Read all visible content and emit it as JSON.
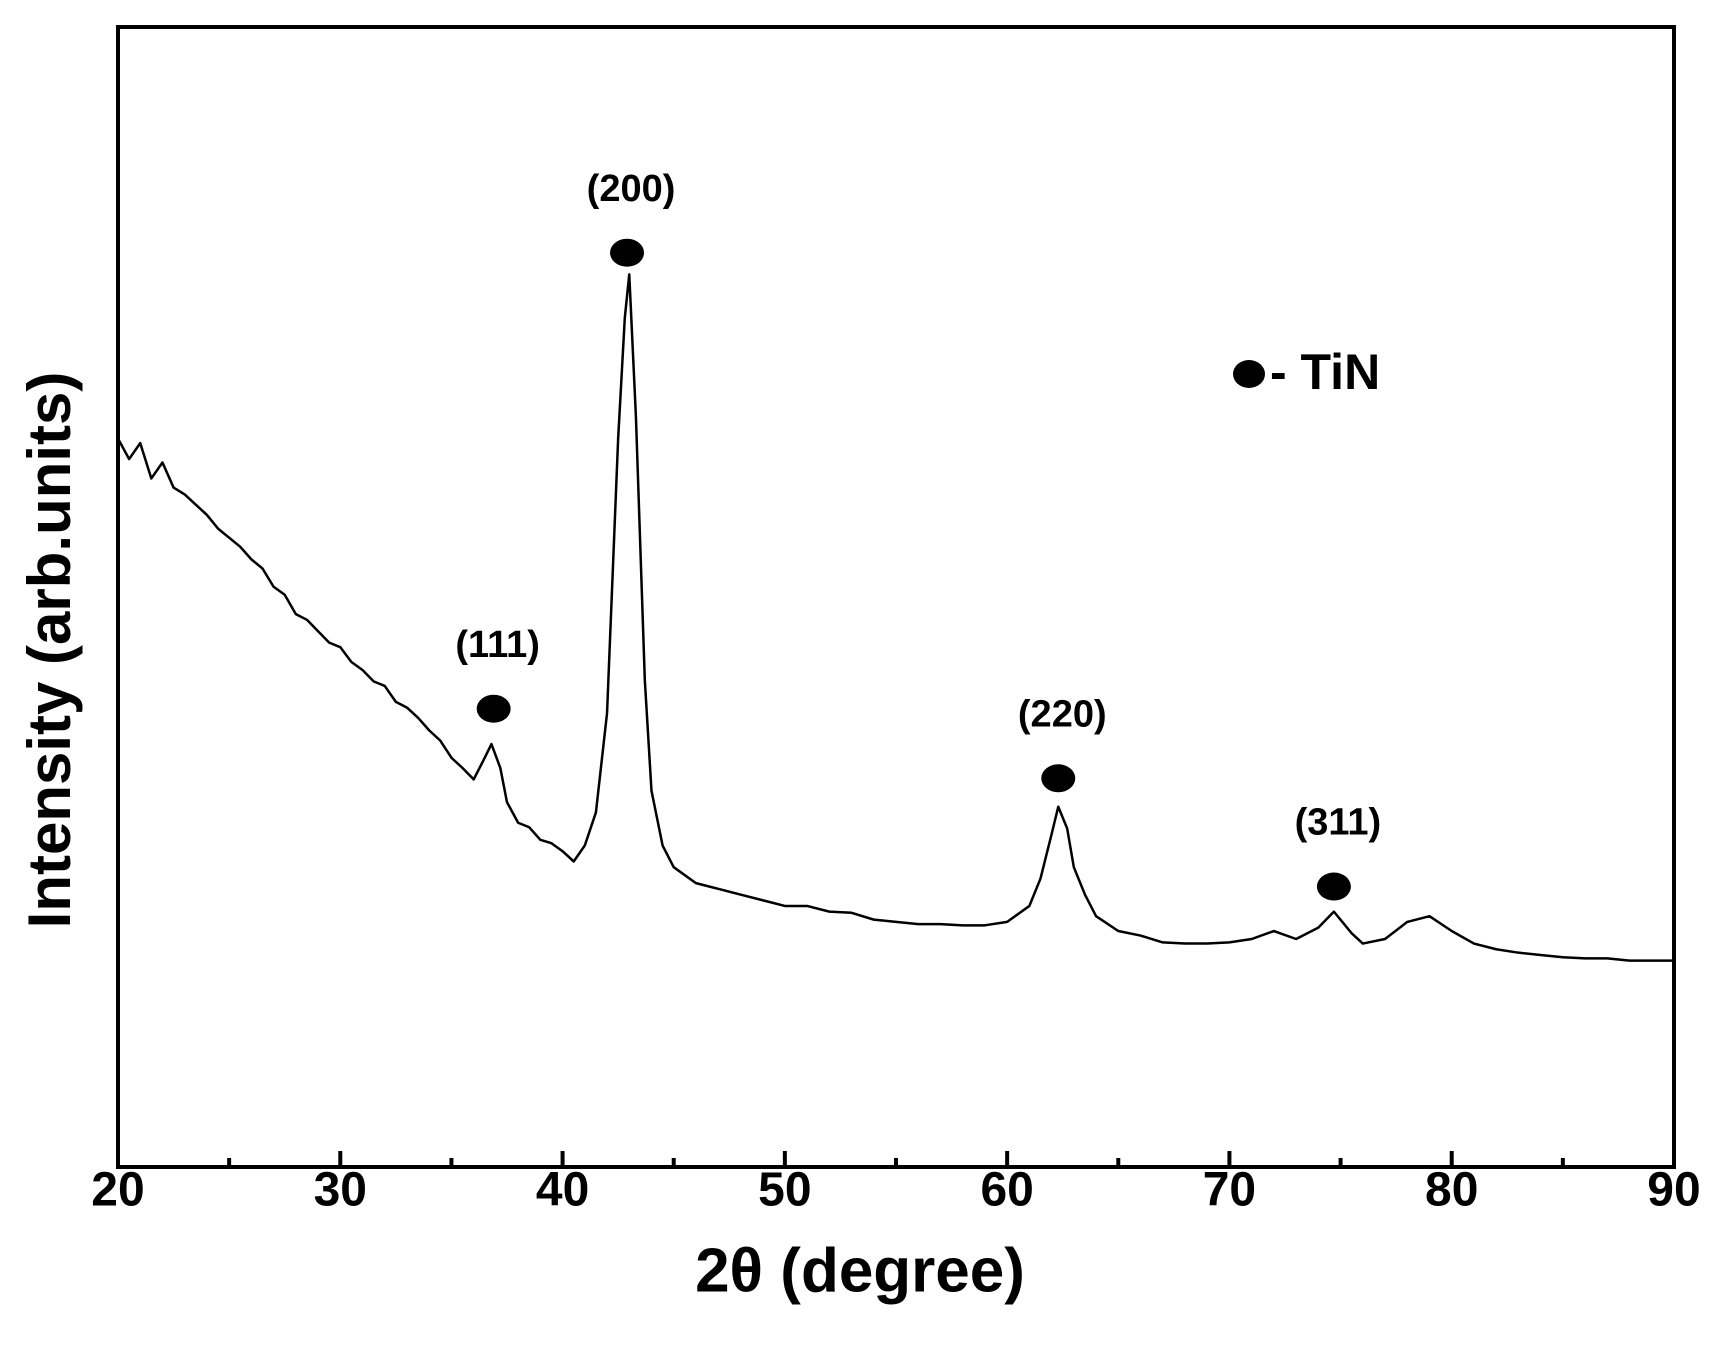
{
  "chart_data": {
    "type": "line",
    "xlabel": "2θ (degree)",
    "ylabel": "Intensity (arb.units)",
    "xlim": [
      20,
      90
    ],
    "xticks": [
      20,
      30,
      40,
      50,
      60,
      70,
      80,
      90
    ],
    "xminorticks": [
      25,
      35,
      45,
      55,
      65,
      75,
      85
    ],
    "ylim": [
      0,
      100
    ],
    "series": [
      {
        "color": "#000000",
        "x": [
          20,
          20.5,
          21,
          21.5,
          22,
          22.5,
          23,
          23.5,
          24,
          24.5,
          25,
          25.5,
          26,
          26.5,
          27,
          27.5,
          28,
          28.5,
          29,
          29.5,
          30,
          30.5,
          31,
          31.5,
          32,
          32.5,
          33,
          33.5,
          34,
          34.5,
          35,
          35.5,
          36,
          36.5,
          36.8,
          37.2,
          37.5,
          38,
          38.5,
          39,
          39.5,
          40,
          40.5,
          41,
          41.5,
          42,
          42.5,
          42.8,
          43,
          43.3,
          43.7,
          44,
          44.5,
          45,
          46,
          47,
          48,
          49,
          50,
          51,
          52,
          53,
          54,
          55,
          56,
          57,
          58,
          59,
          60,
          61,
          61.5,
          62,
          62.3,
          62.7,
          63,
          63.5,
          64,
          65,
          66,
          67,
          68,
          69,
          70,
          71,
          72,
          73,
          74,
          74.7,
          75.5,
          76,
          77,
          78,
          79,
          80,
          81,
          82,
          83,
          84,
          85,
          86,
          87,
          88,
          89,
          90
        ],
        "values": [
          63.9,
          62.1,
          63.5,
          60.4,
          61.8,
          59.6,
          59.0,
          58.1,
          57.2,
          56.0,
          55.2,
          54.4,
          53.3,
          52.5,
          50.9,
          50.2,
          48.5,
          48.0,
          47.0,
          46.0,
          45.6,
          44.3,
          43.6,
          42.6,
          42.2,
          40.8,
          40.3,
          39.4,
          38.3,
          37.4,
          35.9,
          35.0,
          34.0,
          35.9,
          37.1,
          35.0,
          32.0,
          30.2,
          29.8,
          28.7,
          28.4,
          27.7,
          26.8,
          28.2,
          31.1,
          39.8,
          63.9,
          74.5,
          78.3,
          65.8,
          42.7,
          33.0,
          28.2,
          26.3,
          24.9,
          24.4,
          23.9,
          23.4,
          22.9,
          22.9,
          22.4,
          22.3,
          21.7,
          21.5,
          21.3,
          21.3,
          21.2,
          21.2,
          21.5,
          22.9,
          25.3,
          29.2,
          31.6,
          29.7,
          26.3,
          23.9,
          22.0,
          20.7,
          20.3,
          19.7,
          19.6,
          19.6,
          19.7,
          20.0,
          20.7,
          20.0,
          21.0,
          22.4,
          20.5,
          19.6,
          20.0,
          21.5,
          22.0,
          20.7,
          19.6,
          19.1,
          18.8,
          18.6,
          18.4,
          18.3,
          18.3,
          18.1,
          18.1,
          18.1
        ]
      }
    ],
    "annotations": [
      {
        "text": "(111)",
        "x": 36.9,
        "y": 40.2
      },
      {
        "text": "(200)",
        "x": 42.9,
        "y": 80.2
      },
      {
        "text": "(220)",
        "x": 62.3,
        "y": 34.1
      },
      {
        "text": "(311)",
        "x": 74.7,
        "y": 24.6
      }
    ],
    "marker_legend": "- TiN"
  }
}
